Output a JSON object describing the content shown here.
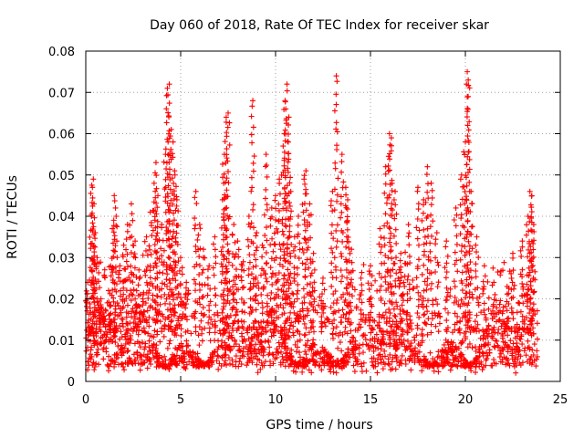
{
  "chart_data": {
    "type": "scatter",
    "title": "Day 060 of 2018, Rate Of TEC Index for receiver skar",
    "xlabel": "GPS time / hours",
    "ylabel": "ROTI / TECUs",
    "xlim": [
      0,
      25
    ],
    "ylim": [
      0,
      0.08
    ],
    "xticks": [
      0,
      5,
      10,
      15,
      20,
      25
    ],
    "xtick_labels": [
      "0",
      "5",
      "10",
      "15",
      "20",
      "25"
    ],
    "yticks": [
      0,
      0.01,
      0.02,
      0.03,
      0.04,
      0.05,
      0.06,
      0.07,
      0.08
    ],
    "ytick_labels": [
      "0",
      "0.01",
      "0.02",
      "0.03",
      "0.04",
      "0.05",
      "0.06",
      "0.07",
      "0.08"
    ],
    "grid": true,
    "marker": "+",
    "marker_color": "#ff0000",
    "series": [
      {
        "name": "ROTI",
        "points": [
          [
            0.1,
            0.024
          ],
          [
            0.2,
            0.012
          ],
          [
            0.3,
            0.04
          ],
          [
            0.35,
            0.047
          ],
          [
            0.4,
            0.049
          ],
          [
            0.5,
            0.036
          ],
          [
            0.6,
            0.03
          ],
          [
            0.8,
            0.02
          ],
          [
            1.0,
            0.015
          ],
          [
            1.2,
            0.022
          ],
          [
            1.4,
            0.037
          ],
          [
            1.5,
            0.045
          ],
          [
            1.6,
            0.04
          ],
          [
            1.8,
            0.028
          ],
          [
            2.0,
            0.033
          ],
          [
            2.2,
            0.038
          ],
          [
            2.4,
            0.043
          ],
          [
            2.6,
            0.034
          ],
          [
            2.8,
            0.027
          ],
          [
            3.0,
            0.02
          ],
          [
            3.2,
            0.035
          ],
          [
            3.4,
            0.041
          ],
          [
            3.6,
            0.048
          ],
          [
            3.7,
            0.053
          ],
          [
            3.8,
            0.045
          ],
          [
            4.0,
            0.038
          ],
          [
            4.2,
            0.055
          ],
          [
            4.3,
            0.071
          ],
          [
            4.4,
            0.072
          ],
          [
            4.5,
            0.061
          ],
          [
            4.6,
            0.058
          ],
          [
            4.7,
            0.05
          ],
          [
            4.8,
            0.044
          ],
          [
            5.0,
            0.03
          ],
          [
            5.3,
            0.024
          ],
          [
            5.8,
            0.046
          ],
          [
            6.0,
            0.038
          ],
          [
            6.2,
            0.032
          ],
          [
            6.5,
            0.028
          ],
          [
            6.8,
            0.035
          ],
          [
            7.2,
            0.044
          ],
          [
            7.3,
            0.055
          ],
          [
            7.4,
            0.064
          ],
          [
            7.5,
            0.065
          ],
          [
            7.8,
            0.038
          ],
          [
            8.0,
            0.034
          ],
          [
            8.3,
            0.029
          ],
          [
            8.6,
            0.04
          ],
          [
            8.8,
            0.068
          ],
          [
            9.0,
            0.036
          ],
          [
            9.3,
            0.033
          ],
          [
            9.5,
            0.055
          ],
          [
            9.8,
            0.042
          ],
          [
            10.0,
            0.045
          ],
          [
            10.2,
            0.049
          ],
          [
            10.4,
            0.057
          ],
          [
            10.5,
            0.068
          ],
          [
            10.6,
            0.072
          ],
          [
            10.7,
            0.064
          ],
          [
            10.8,
            0.046
          ],
          [
            11.0,
            0.035
          ],
          [
            11.2,
            0.04
          ],
          [
            11.5,
            0.049
          ],
          [
            11.6,
            0.051
          ],
          [
            11.8,
            0.043
          ],
          [
            12.0,
            0.031
          ],
          [
            12.5,
            0.025
          ],
          [
            13.0,
            0.046
          ],
          [
            13.2,
            0.074
          ],
          [
            13.5,
            0.055
          ],
          [
            13.7,
            0.047
          ],
          [
            13.8,
            0.044
          ],
          [
            14.0,
            0.032
          ],
          [
            14.5,
            0.025
          ],
          [
            15.0,
            0.028
          ],
          [
            15.5,
            0.037
          ],
          [
            15.8,
            0.052
          ],
          [
            16.0,
            0.06
          ],
          [
            16.1,
            0.059
          ],
          [
            16.3,
            0.046
          ],
          [
            16.6,
            0.031
          ],
          [
            17.0,
            0.038
          ],
          [
            17.5,
            0.047
          ],
          [
            17.8,
            0.044
          ],
          [
            18.0,
            0.052
          ],
          [
            18.2,
            0.048
          ],
          [
            18.5,
            0.036
          ],
          [
            19.0,
            0.034
          ],
          [
            19.5,
            0.042
          ],
          [
            19.8,
            0.05
          ],
          [
            20.0,
            0.058
          ],
          [
            20.1,
            0.075
          ],
          [
            20.15,
            0.073
          ],
          [
            20.3,
            0.046
          ],
          [
            20.6,
            0.035
          ],
          [
            21.0,
            0.028
          ],
          [
            21.5,
            0.024
          ],
          [
            22.0,
            0.018
          ],
          [
            22.2,
            0.023
          ],
          [
            22.5,
            0.031
          ],
          [
            23.0,
            0.034
          ],
          [
            23.3,
            0.04
          ],
          [
            23.4,
            0.046
          ],
          [
            23.5,
            0.045
          ],
          [
            23.6,
            0.038
          ]
        ],
        "dense_band": {
          "x_range": [
            0,
            23.8
          ],
          "y_range": [
            0.002,
            0.03
          ],
          "typical": 0.01
        }
      }
    ]
  }
}
